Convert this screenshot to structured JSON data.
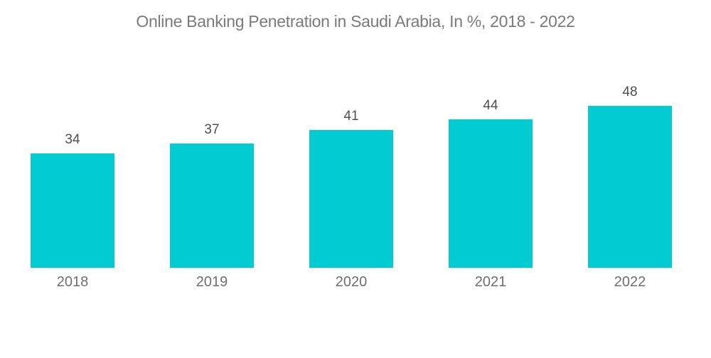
{
  "chart_data": {
    "type": "bar",
    "title": "Online Banking Penetration in Saudi Arabia, In %, 2018 - 2022",
    "categories": [
      "2018",
      "2019",
      "2020",
      "2021",
      "2022"
    ],
    "values": [
      34,
      37,
      41,
      44,
      48
    ],
    "xlabel": "",
    "ylabel": "",
    "ylim": [
      0,
      50
    ],
    "grid": false,
    "legend": false,
    "bar_value_labels_shown": true,
    "axes_lines_shown": false
  },
  "colors": {
    "bar": "#02CBD1",
    "title_text": "#7A7A7A",
    "value_label_text": "#4D4D4D",
    "axis_label_text": "#6E6E6E",
    "background": "#FFFFFF"
  }
}
